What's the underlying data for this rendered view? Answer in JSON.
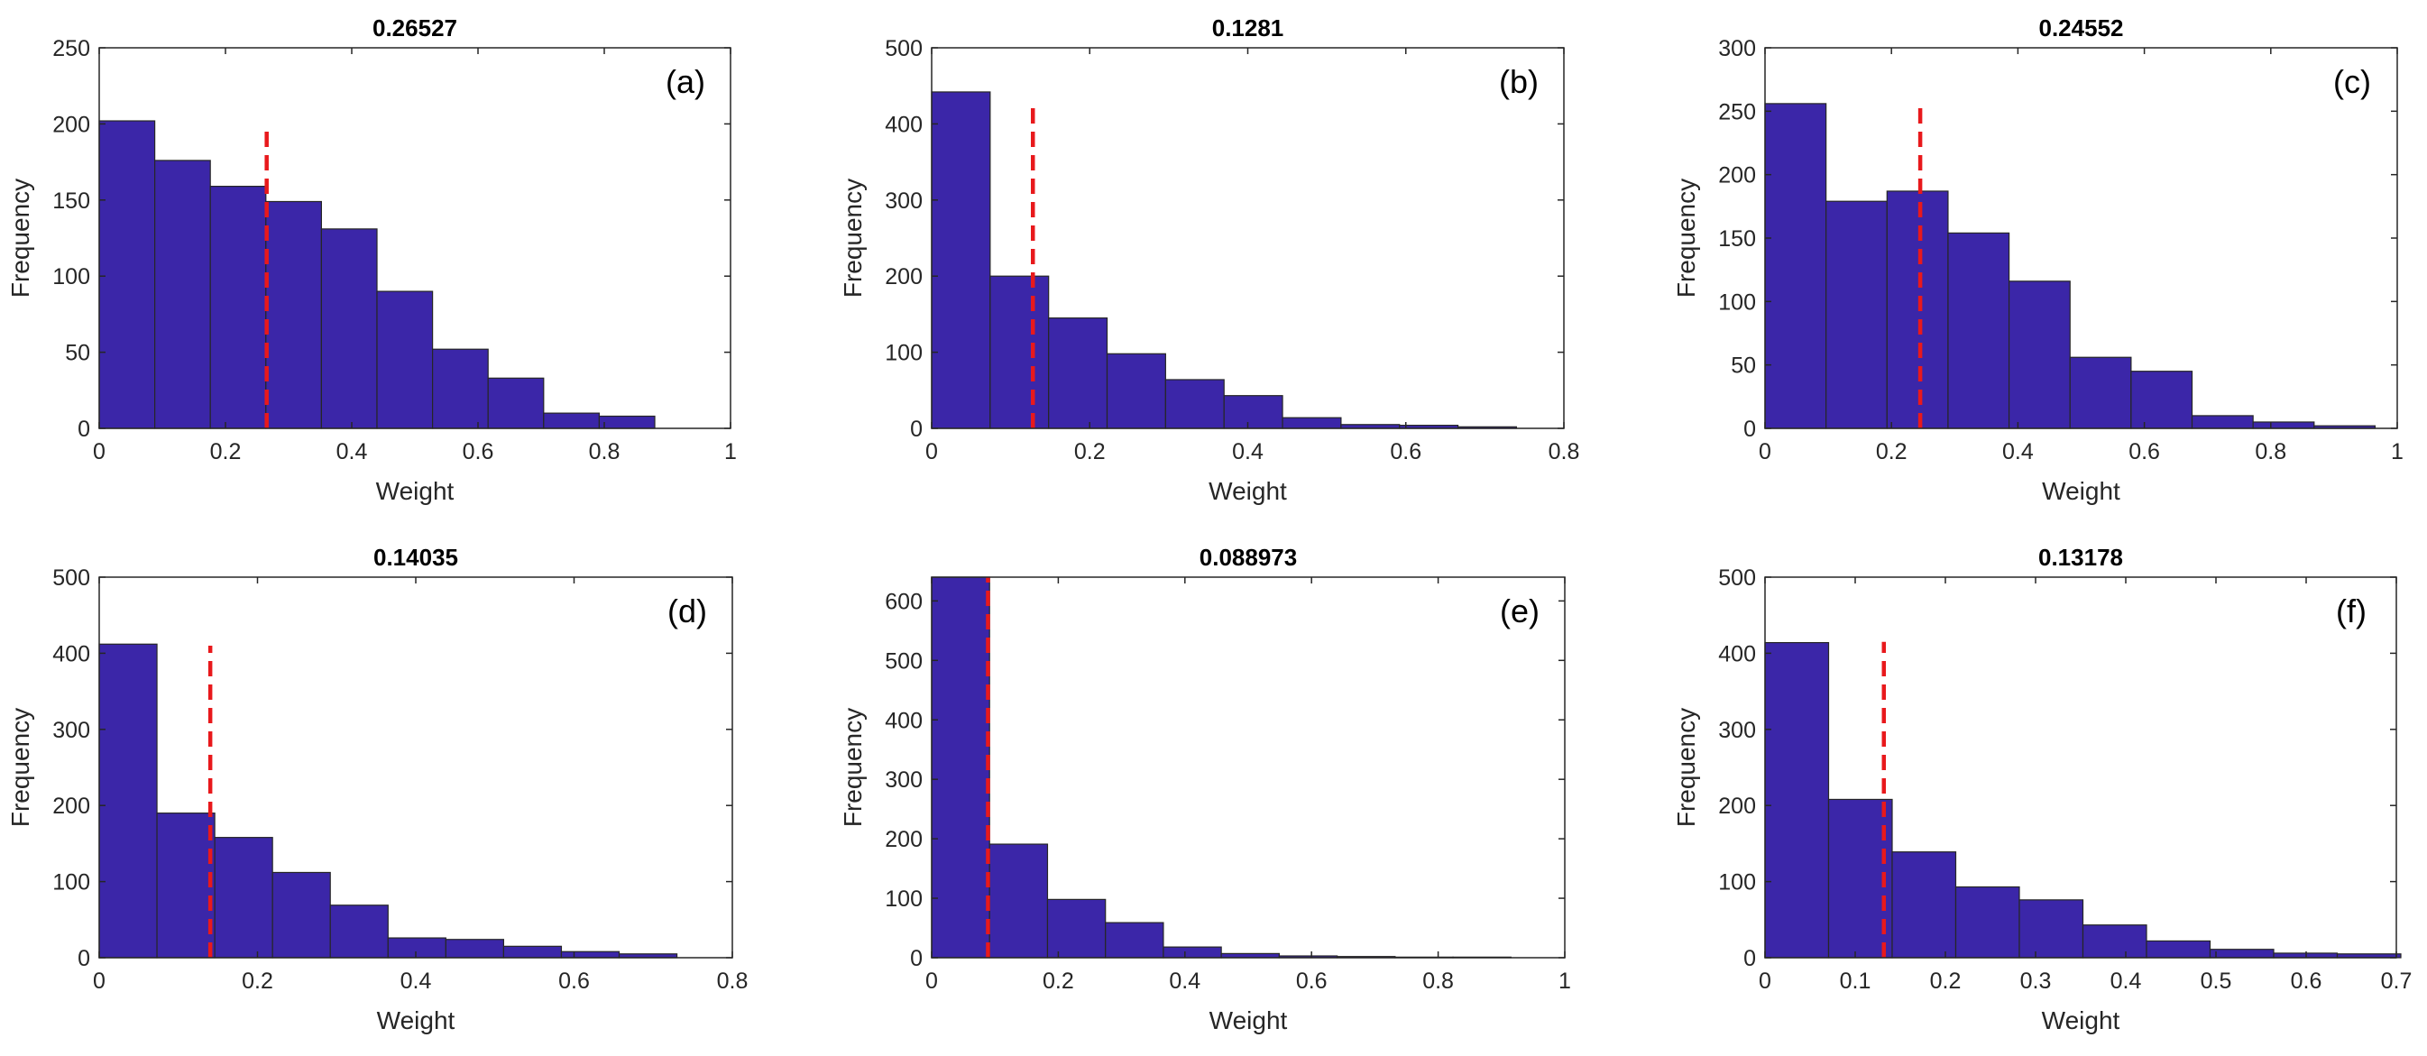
{
  "colors": {
    "bar": "#3b26a8",
    "bar_edge": "#262626",
    "mean_line": "#e8191c",
    "axis": "#262626"
  },
  "chart_data": [
    {
      "type": "bar",
      "panel": "(a)",
      "title": "0.26527",
      "xlabel": "Weight",
      "ylabel": "Frequency",
      "xlim": [
        0,
        1
      ],
      "ylim": [
        0,
        250
      ],
      "xticks": [
        0,
        0.2,
        0.4,
        0.6,
        0.8,
        1
      ],
      "xtick_labels": [
        "0",
        "0.2",
        "0.4",
        "0.6",
        "0.8",
        "1"
      ],
      "yticks": [
        0,
        50,
        100,
        150,
        200,
        250
      ],
      "ytick_labels": [
        "0",
        "50",
        "100",
        "150",
        "200",
        "250"
      ],
      "bin_start": 0.0,
      "bin_width": 0.088,
      "values": [
        202,
        176,
        159,
        149,
        131,
        90,
        52,
        33,
        10,
        8
      ],
      "mean": 0.26527,
      "mean_line_top": 195
    },
    {
      "type": "bar",
      "panel": "(b)",
      "title": "0.1281",
      "xlabel": "Weight",
      "ylabel": "Frequency",
      "xlim": [
        0,
        0.8
      ],
      "ylim": [
        0,
        500
      ],
      "xticks": [
        0,
        0.2,
        0.4,
        0.6,
        0.8
      ],
      "xtick_labels": [
        "0",
        "0.2",
        "0.4",
        "0.6",
        "0.8"
      ],
      "yticks": [
        0,
        100,
        200,
        300,
        400,
        500
      ],
      "ytick_labels": [
        "0",
        "100",
        "200",
        "300",
        "400",
        "500"
      ],
      "bin_start": 0.0,
      "bin_width": 0.074,
      "values": [
        442,
        200,
        145,
        98,
        64,
        43,
        14,
        5,
        4,
        2
      ],
      "mean": 0.1281,
      "mean_line_top": 430
    },
    {
      "type": "bar",
      "panel": "(c)",
      "title": "0.24552",
      "xlabel": "Weight",
      "ylabel": "Frequency",
      "xlim": [
        0,
        1
      ],
      "ylim": [
        0,
        300
      ],
      "xticks": [
        0,
        0.2,
        0.4,
        0.6,
        0.8,
        1
      ],
      "xtick_labels": [
        "0",
        "0.2",
        "0.4",
        "0.6",
        "0.8",
        "1"
      ],
      "yticks": [
        0,
        50,
        100,
        150,
        200,
        250,
        300
      ],
      "ytick_labels": [
        "0",
        "50",
        "100",
        "150",
        "200",
        "250",
        "300"
      ],
      "bin_start": 0.0,
      "bin_width": 0.0965,
      "values": [
        256,
        179,
        187,
        154,
        116,
        56,
        45,
        10,
        5,
        2
      ],
      "mean": 0.24552,
      "mean_line_top": 258
    },
    {
      "type": "bar",
      "panel": "(d)",
      "title": "0.14035",
      "xlabel": "Weight",
      "ylabel": "Frequency",
      "xlim": [
        0,
        0.8
      ],
      "ylim": [
        0,
        500
      ],
      "xticks": [
        0,
        0.2,
        0.4,
        0.6,
        0.8
      ],
      "xtick_labels": [
        "0",
        "0.2",
        "0.4",
        "0.6",
        "0.8"
      ],
      "yticks": [
        0,
        100,
        200,
        300,
        400,
        500
      ],
      "ytick_labels": [
        "0",
        "100",
        "200",
        "300",
        "400",
        "500"
      ],
      "bin_start": 0.0,
      "bin_width": 0.073,
      "values": [
        412,
        190,
        158,
        112,
        69,
        26,
        24,
        15,
        8,
        5
      ],
      "mean": 0.14035,
      "mean_line_top": 410
    },
    {
      "type": "bar",
      "panel": "(e)",
      "title": "0.088973",
      "xlabel": "Weight",
      "ylabel": "Frequency",
      "xlim": [
        0,
        1
      ],
      "ylim": [
        0,
        640
      ],
      "xticks": [
        0,
        0.2,
        0.4,
        0.6,
        0.8,
        1
      ],
      "xtick_labels": [
        "0",
        "0.2",
        "0.4",
        "0.6",
        "0.8",
        "1"
      ],
      "yticks": [
        0,
        100,
        200,
        300,
        400,
        500,
        600
      ],
      "ytick_labels": [
        "0",
        "100",
        "200",
        "300",
        "400",
        "500",
        "600"
      ],
      "bin_start": 0.0,
      "bin_width": 0.0915,
      "values": [
        640,
        191,
        98,
        59,
        18,
        7,
        3,
        2,
        1,
        1
      ],
      "mean": 0.088973,
      "mean_line_top": 640
    },
    {
      "type": "bar",
      "panel": "(f)",
      "title": "0.13178",
      "xlabel": "Weight",
      "ylabel": "Frequency",
      "xlim": [
        0,
        0.7
      ],
      "ylim": [
        0,
        500
      ],
      "xticks": [
        0,
        0.1,
        0.2,
        0.3,
        0.4,
        0.5,
        0.6,
        0.7
      ],
      "xtick_labels": [
        "0",
        "0.1",
        "0.2",
        "0.3",
        "0.4",
        "0.5",
        "0.6",
        "0.7"
      ],
      "yticks": [
        0,
        100,
        200,
        300,
        400,
        500
      ],
      "ytick_labels": [
        "0",
        "100",
        "200",
        "300",
        "400",
        "500"
      ],
      "bin_start": 0.0,
      "bin_width": 0.0705,
      "values": [
        414,
        208,
        139,
        93,
        76,
        43,
        22,
        11,
        6,
        5
      ],
      "mean": 0.13178,
      "mean_line_top": 415
    }
  ]
}
